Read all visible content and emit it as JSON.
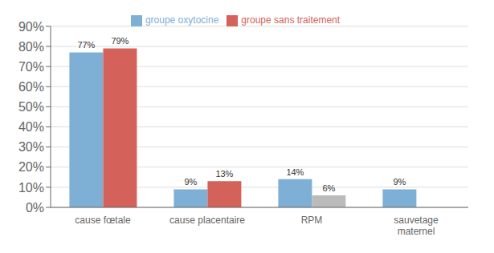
{
  "chart_data": {
    "type": "bar",
    "categories": [
      "cause fœtale",
      "cause placentaire",
      "RPM",
      "sauvetage\nmaternel"
    ],
    "series": [
      {
        "name": "groupe oxytocine",
        "color": "#7EB0D5",
        "values": [
          77,
          9,
          14,
          9
        ],
        "value_labels": [
          "77%",
          "9%",
          "14%",
          "9%"
        ]
      },
      {
        "name": "groupe sans traitement",
        "color": "#D4615A",
        "colors": [
          "#D4615A",
          "#D4615A",
          "#BBBBBB",
          "#D4615A"
        ],
        "values": [
          79,
          13,
          6,
          null
        ],
        "value_labels": [
          "79%",
          "13%",
          "6%",
          null
        ]
      }
    ],
    "ylim": [
      0,
      90
    ],
    "yticks": [
      {
        "value": 0,
        "label": "0%"
      },
      {
        "value": 10,
        "label": "10%"
      },
      {
        "value": 20,
        "label": "20%"
      },
      {
        "value": 30,
        "label": "30%"
      },
      {
        "value": 40,
        "label": "40%"
      },
      {
        "value": 50,
        "label": "50%"
      },
      {
        "value": 60,
        "label": "60%"
      },
      {
        "value": 70,
        "label": "70%"
      },
      {
        "value": 80,
        "label": "80%"
      },
      {
        "value": 90,
        "label": "90%"
      }
    ],
    "grid": true,
    "data_labels": true,
    "legend": "top"
  }
}
